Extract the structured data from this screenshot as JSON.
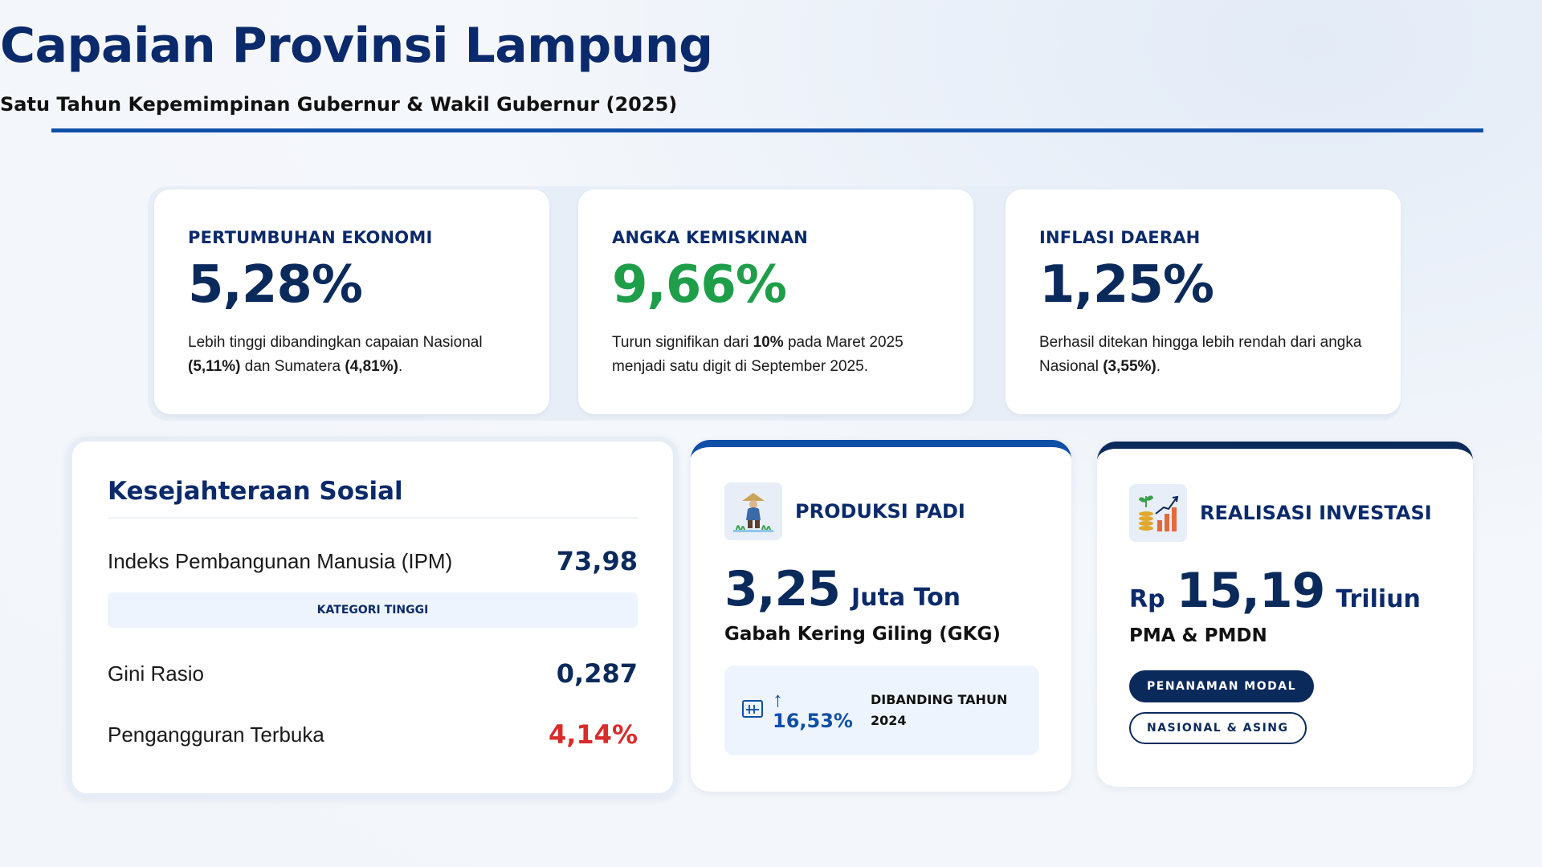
{
  "header": {
    "title": "Capaian Provinsi Lampung",
    "subtitle": "Satu Tahun Kepemimpinan Gubernur & Wakil Gubernur (2025)"
  },
  "stats": [
    {
      "label": "PERTUMBUHAN EKONOMI",
      "value": "5,28%",
      "desc_parts": [
        "Lebih tinggi dibandingkan capaian Nasional ",
        "(5,11%)",
        " dan Sumatera ",
        "(4,81%)",
        "."
      ]
    },
    {
      "label": "ANGKA KEMISKINAN",
      "value": "9,66%",
      "desc_parts": [
        "Turun signifikan dari ",
        "10%",
        " pada Maret 2025 menjadi satu digit di September 2025."
      ]
    },
    {
      "label": "INFLASI DAERAH",
      "value": "1,25%",
      "desc_parts": [
        "Berhasil ditekan hingga lebih rendah dari angka Nasional ",
        "(3,55%)",
        "."
      ]
    }
  ],
  "kesejahteraan": {
    "title": "Kesejahteraan Sosial",
    "ipm_label": "Indeks Pembangunan Manusia (IPM)",
    "ipm_value": "73,98",
    "kategori": "KATEGORI TINGGI",
    "gini_label": "Gini Rasio",
    "gini_value": "0,287",
    "pengangguran_label": "Pengangguran Terbuka",
    "pengangguran_value": "4,14%"
  },
  "padi": {
    "icon": "farmer-icon",
    "title": "PRODUKSI PADI",
    "value": "3,25",
    "unit": "Juta Ton",
    "subline": "Gabah Kering Giling (GKG)",
    "arrow": "↑",
    "change": "16,53%",
    "compare_label": "DIBANDING TAHUN 2024"
  },
  "investasi": {
    "icon": "investment-growth-icon",
    "title": "REALISASI INVESTASI",
    "currency": "Rp",
    "value": "15,19",
    "unit": "Triliun",
    "subline": "PMA & PMDN",
    "pill_1": "PENANAMAN MODAL",
    "pill_2": "NASIONAL & ASING"
  },
  "colors": {
    "navy": "#0b2a5c",
    "blue": "#0f4fa8",
    "green": "#1f9e4a",
    "red": "#d92b2b"
  }
}
